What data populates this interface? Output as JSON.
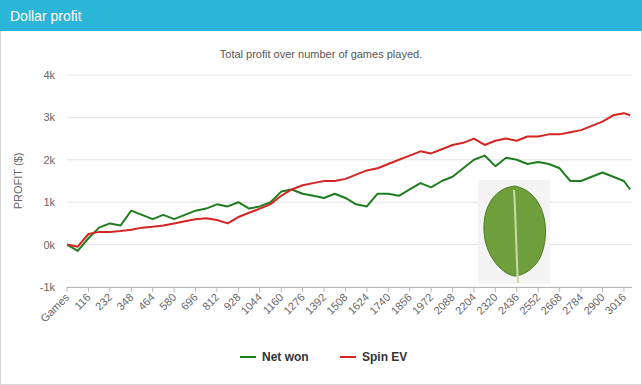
{
  "chart_data": {
    "type": "line",
    "title": "Dollar profit",
    "subtitle": "Total profit over number of games played.",
    "y_label": "PROFIT ($)",
    "x": [
      0,
      58,
      116,
      174,
      232,
      290,
      348,
      406,
      464,
      522,
      580,
      638,
      696,
      754,
      812,
      870,
      928,
      986,
      1044,
      1102,
      1160,
      1218,
      1276,
      1334,
      1392,
      1450,
      1508,
      1566,
      1624,
      1682,
      1740,
      1798,
      1856,
      1914,
      1972,
      2030,
      2088,
      2146,
      2204,
      2262,
      2320,
      2378,
      2436,
      2494,
      2552,
      2610,
      2668,
      2726,
      2784,
      2842,
      2900,
      2958,
      3016,
      3050
    ],
    "xlim": [
      0,
      3060
    ],
    "xticks": [
      {
        "value": 0,
        "label": "Games"
      },
      116,
      232,
      348,
      464,
      580,
      696,
      812,
      928,
      1044,
      1160,
      1276,
      1392,
      1508,
      1624,
      1740,
      1856,
      1972,
      2088,
      2204,
      2320,
      2436,
      2552,
      2668,
      2784,
      2900,
      3016
    ],
    "ylim": [
      -1000,
      4000
    ],
    "yticks": [
      {
        "value": -1000,
        "label": "-1k"
      },
      {
        "value": 0,
        "label": "0k"
      },
      {
        "value": 1000,
        "label": "1k"
      },
      {
        "value": 2000,
        "label": "2k"
      },
      {
        "value": 3000,
        "label": "3k"
      },
      {
        "value": 4000,
        "label": "4k"
      }
    ],
    "grid": true,
    "legend": "bottom",
    "series": [
      {
        "name": "Net won",
        "color": "#1e7d1e",
        "values": [
          0,
          -150,
          150,
          400,
          500,
          450,
          800,
          700,
          600,
          700,
          600,
          700,
          800,
          850,
          950,
          900,
          1000,
          850,
          900,
          1000,
          1250,
          1300,
          1200,
          1150,
          1100,
          1200,
          1100,
          950,
          900,
          1200,
          1200,
          1150,
          1300,
          1450,
          1350,
          1500,
          1600,
          1800,
          2000,
          2100,
          1850,
          2050,
          2000,
          1900,
          1950,
          1900,
          1800,
          1500,
          1500,
          1600,
          1700,
          1600,
          1500,
          1300
        ]
      },
      {
        "name": "Spin EV",
        "color": "#d42424",
        "values": [
          0,
          -50,
          250,
          300,
          300,
          320,
          350,
          400,
          420,
          450,
          500,
          550,
          600,
          620,
          580,
          500,
          650,
          750,
          850,
          950,
          1150,
          1300,
          1400,
          1450,
          1500,
          1500,
          1550,
          1650,
          1750,
          1800,
          1900,
          2000,
          2100,
          2200,
          2150,
          2250,
          2350,
          2400,
          2500,
          2350,
          2450,
          2500,
          2450,
          2550,
          2550,
          2600,
          2600,
          2650,
          2700,
          2800,
          2900,
          3050,
          3100,
          3050
        ]
      }
    ]
  }
}
